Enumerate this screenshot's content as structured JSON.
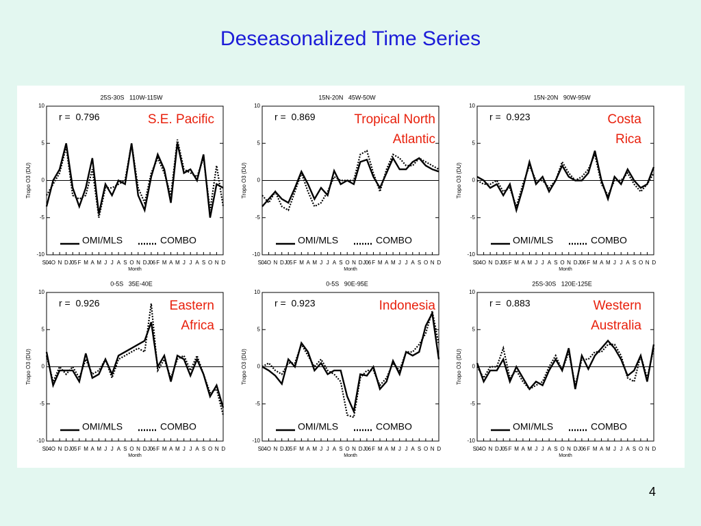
{
  "title": "Deseasonalized Time Series",
  "page_number": "4",
  "chart_data": [
    {
      "type": "line",
      "subtitle": "25S-30S   110W-115W",
      "annotation": "r =  0.796",
      "region": [
        "S.E. Pacific"
      ],
      "ylabel": "Tropo O3 (DU)",
      "xlabel": "Month",
      "categories": [
        "S04",
        "O",
        "N",
        "D",
        "J05",
        "F",
        "M",
        "A",
        "M",
        "J",
        "J",
        "A",
        "S",
        "O",
        "N",
        "D",
        "J06",
        "F",
        "M",
        "A",
        "M",
        "J",
        "J",
        "A",
        "S",
        "O",
        "N",
        "D"
      ],
      "ylim": [
        -10,
        10
      ],
      "yticks": [
        -10,
        -5,
        0,
        5,
        10
      ],
      "series": [
        {
          "name": "OMI/MLS",
          "color": "#000000",
          "style": "solid",
          "values": [
            -3.5,
            0,
            1.5,
            5,
            -1,
            -3.5,
            -1,
            3,
            -4.5,
            -0.5,
            -2,
            0,
            -0.5,
            5,
            -2,
            -4,
            0.5,
            3.5,
            1.5,
            -3,
            5,
            1,
            1.5,
            0,
            3.5,
            -5,
            -0.5,
            -1
          ]
        },
        {
          "name": "COMBO",
          "color": "#000000",
          "style": "dotted",
          "values": [
            -2,
            -0.5,
            1,
            4.5,
            -2,
            -2.5,
            -2,
            1.5,
            -5,
            -1,
            -1,
            -0.5,
            0,
            5,
            -1,
            -3,
            1,
            3,
            1,
            -2,
            5.5,
            1.5,
            1,
            0.5,
            3,
            -4,
            2,
            -3.5
          ]
        }
      ]
    },
    {
      "type": "line",
      "subtitle": "15N-20N   45W-50W",
      "annotation": "r =  0.869",
      "region": [
        "Tropical North",
        "Atlantic"
      ],
      "ylabel": "Tropo O3 (DU)",
      "xlabel": "Month",
      "categories": [
        "S04",
        "O",
        "N",
        "D",
        "J05",
        "F",
        "M",
        "A",
        "M",
        "J",
        "J",
        "A",
        "S",
        "O",
        "N",
        "D",
        "J06",
        "F",
        "M",
        "A",
        "M",
        "J",
        "J",
        "A",
        "S",
        "O",
        "N",
        "D"
      ],
      "ylim": [
        -10,
        10
      ],
      "yticks": [
        -10,
        -5,
        0,
        5,
        10
      ],
      "series": [
        {
          "name": "OMI/MLS",
          "color": "#000000",
          "style": "solid",
          "values": [
            -3.5,
            -2.5,
            -1.5,
            -2.5,
            -3,
            -1,
            1.2,
            -0.5,
            -2.5,
            -1,
            -2,
            1.3,
            -0.5,
            0,
            -0.5,
            2.5,
            2.8,
            0.5,
            -1,
            1,
            3,
            1.5,
            1.5,
            2.5,
            3,
            2,
            1.5,
            1.2
          ]
        },
        {
          "name": "COMBO",
          "color": "#000000",
          "style": "dotted",
          "values": [
            -2,
            -3,
            -1.5,
            -3.5,
            -4,
            -1.5,
            1,
            -1.5,
            -3.5,
            -3,
            -1.5,
            0.5,
            0,
            0,
            0,
            3.5,
            4,
            1,
            -1.5,
            1.5,
            3.5,
            3,
            2,
            2,
            3,
            2.5,
            2,
            1.5
          ]
        }
      ]
    },
    {
      "type": "line",
      "subtitle": "15N-20N   90W-95W",
      "annotation": "r =  0.923",
      "region": [
        "Costa",
        "Rica"
      ],
      "ylabel": "Tropo O3 (DU)",
      "xlabel": "Month",
      "categories": [
        "S04",
        "O",
        "N",
        "D",
        "J05",
        "F",
        "M",
        "A",
        "M",
        "J",
        "J",
        "A",
        "S",
        "O",
        "N",
        "D",
        "J06",
        "F",
        "M",
        "A",
        "M",
        "J",
        "J",
        "A",
        "S",
        "O",
        "N",
        "D"
      ],
      "ylim": [
        -10,
        10
      ],
      "yticks": [
        -10,
        -5,
        0,
        5,
        10
      ],
      "series": [
        {
          "name": "OMI/MLS",
          "color": "#000000",
          "style": "solid",
          "values": [
            0.5,
            0,
            -1,
            -0.5,
            -2,
            -0.5,
            -4,
            -1,
            2.5,
            -0.5,
            0.5,
            -1.5,
            0,
            2,
            0.5,
            0,
            0,
            1,
            4,
            0,
            -2.5,
            0.5,
            -0.5,
            1.5,
            0,
            -1,
            -0.5,
            1.8
          ]
        },
        {
          "name": "COMBO",
          "color": "#000000",
          "style": "dotted",
          "values": [
            0,
            -0.5,
            -0.5,
            0,
            -1.5,
            -1,
            -3.5,
            -0.5,
            2,
            0,
            0,
            -1,
            0,
            2.5,
            1,
            0,
            0.5,
            1.5,
            3.5,
            -0.5,
            -2,
            0,
            0,
            1,
            -0.5,
            -1.5,
            -0.5,
            1
          ]
        }
      ]
    },
    {
      "type": "line",
      "subtitle": "0-5S   35E-40E",
      "annotation": "r =  0.926",
      "region": [
        "Eastern",
        "Africa"
      ],
      "ylabel": "Tropo O3 (DU)",
      "xlabel": "Month",
      "categories": [
        "S04",
        "O",
        "N",
        "D",
        "J05",
        "F",
        "M",
        "A",
        "M",
        "J",
        "J",
        "A",
        "S",
        "O",
        "N",
        "D",
        "J06",
        "F",
        "M",
        "A",
        "M",
        "J",
        "J",
        "A",
        "S",
        "O",
        "N",
        "D"
      ],
      "ylim": [
        -10,
        10
      ],
      "yticks": [
        -10,
        -5,
        0,
        5,
        10
      ],
      "series": [
        {
          "name": "OMI/MLS",
          "color": "#000000",
          "style": "solid",
          "values": [
            2,
            -2.5,
            -0.5,
            -0.5,
            -0.5,
            -2,
            1.8,
            -1.5,
            -1,
            1,
            -1,
            1.5,
            2,
            2.5,
            3,
            3.5,
            6,
            0,
            1.5,
            -2,
            1.5,
            1,
            -1.2,
            1,
            -1,
            -4,
            -2.5,
            -5.5
          ]
        },
        {
          "name": "COMBO",
          "color": "#000000",
          "style": "dotted",
          "values": [
            1.5,
            -2,
            0,
            -1,
            0,
            -1.5,
            1,
            -1,
            -0.5,
            1,
            -1.5,
            1,
            1.5,
            2,
            2.5,
            2,
            8.5,
            -0.5,
            1,
            -1.5,
            1,
            1.5,
            -0.5,
            1.5,
            -1,
            -3.5,
            -3,
            -6.5
          ]
        }
      ]
    },
    {
      "type": "line",
      "subtitle": "0-5S   90E-95E",
      "annotation": "r =  0.923",
      "region": [
        "Indonesia"
      ],
      "ylabel": "Tropo O3 (DU)",
      "xlabel": "Month",
      "categories": [
        "S04",
        "O",
        "N",
        "D",
        "J05",
        "F",
        "M",
        "A",
        "M",
        "J",
        "J",
        "A",
        "S",
        "O",
        "N",
        "D",
        "J06",
        "F",
        "M",
        "A",
        "M",
        "J",
        "J",
        "A",
        "S",
        "O",
        "N",
        "D"
      ],
      "ylim": [
        -10,
        10
      ],
      "yticks": [
        -10,
        -5,
        0,
        5,
        10
      ],
      "series": [
        {
          "name": "OMI/MLS",
          "color": "#000000",
          "style": "solid",
          "values": [
            0,
            -0.5,
            -1.2,
            -2.3,
            1,
            0,
            3.2,
            2,
            -0.5,
            0.5,
            -1,
            -0.5,
            -0.5,
            -4,
            -6,
            -1,
            -1.2,
            0,
            -3,
            -2,
            0.8,
            -1,
            2,
            1.5,
            2,
            5.5,
            7.2,
            1
          ]
        },
        {
          "name": "COMBO",
          "color": "#000000",
          "style": "dotted",
          "values": [
            0,
            0.5,
            -0.5,
            -1,
            0.5,
            0.5,
            3,
            1.5,
            0,
            1,
            -0.5,
            -1,
            -2,
            -6.5,
            -6.8,
            -1.5,
            -0.5,
            -0.5,
            -2.5,
            -1.5,
            0.5,
            -0.5,
            2,
            2,
            3,
            4.5,
            7.5,
            3
          ]
        }
      ]
    },
    {
      "type": "line",
      "subtitle": "25S-30S   120E-125E",
      "annotation": "r =  0.883",
      "region": [
        "Western",
        "Australia"
      ],
      "ylabel": "Tropo O3 (DU)",
      "xlabel": "Month",
      "categories": [
        "S04",
        "O",
        "N",
        "D",
        "J05",
        "F",
        "M",
        "A",
        "M",
        "J",
        "J",
        "A",
        "S",
        "O",
        "N",
        "D",
        "J06",
        "F",
        "M",
        "A",
        "M",
        "J",
        "J",
        "A",
        "S",
        "O",
        "N",
        "D"
      ],
      "ylim": [
        -10,
        10
      ],
      "yticks": [
        -10,
        -5,
        0,
        5,
        10
      ],
      "series": [
        {
          "name": "OMI/MLS",
          "color": "#000000",
          "style": "solid",
          "values": [
            0.5,
            -2,
            -0.5,
            -0.5,
            1,
            -2,
            0,
            -1.5,
            -3,
            -2,
            -2.5,
            -0.5,
            1,
            -0.5,
            2.5,
            -3,
            1.5,
            -0.3,
            1.5,
            2.5,
            3.5,
            2.5,
            1,
            -1.2,
            -0.5,
            1.5,
            -2,
            3
          ]
        },
        {
          "name": "COMBO",
          "color": "#000000",
          "style": "dotted",
          "values": [
            0,
            -1.5,
            0,
            0,
            2.5,
            -1.5,
            -0.5,
            -2,
            -3,
            -2.5,
            -2,
            0,
            1.5,
            -0.5,
            2,
            -2.5,
            1,
            1,
            2,
            2,
            3,
            3,
            1.5,
            -1.5,
            -2,
            1.5,
            -1.5,
            2.5
          ]
        }
      ]
    }
  ]
}
